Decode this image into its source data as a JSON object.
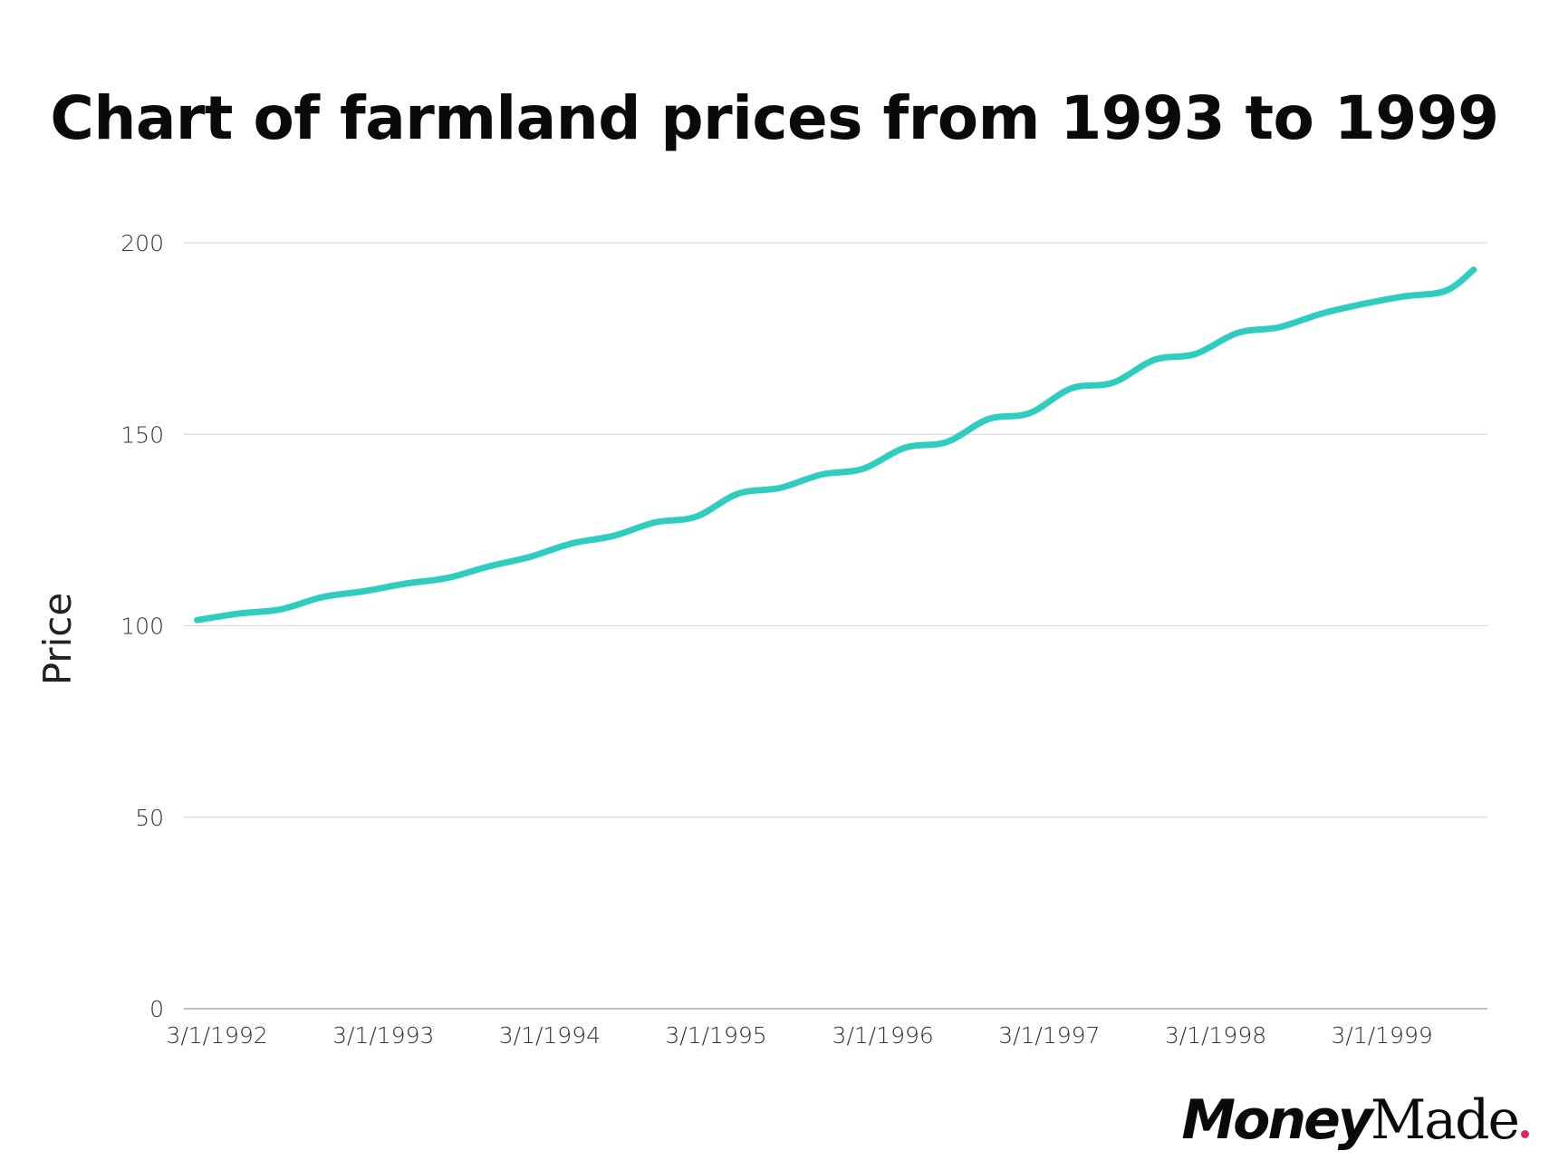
{
  "title": "Chart of farmland prices from 1993 to 1999",
  "brand": {
    "part1": "Money",
    "part2": "Made",
    "dot_color": "#e0245e"
  },
  "colors": {
    "line": "#2ecdc0",
    "grid": "#d9d9d9",
    "axis": "#aaaaaa"
  },
  "chart_data": {
    "type": "line",
    "title": "Chart of farmland prices from 1993 to 1999",
    "xlabel": "",
    "ylabel": "Price",
    "ylim": [
      0,
      200
    ],
    "yticks": [
      0,
      50,
      100,
      150,
      200
    ],
    "ytick_labels": [
      "0",
      "50",
      "100",
      "150",
      "200"
    ],
    "xticks": [
      "1992-03-01",
      "1993-03-01",
      "1994-03-01",
      "1995-03-01",
      "1996-03-01",
      "1997-03-01",
      "1998-03-01",
      "1999-03-01"
    ],
    "xtick_labels": [
      "3/1/1992",
      "3/1/1993",
      "3/1/1994",
      "3/1/1995",
      "3/1/1996",
      "3/1/1997",
      "3/1/1998",
      "3/1/1999"
    ],
    "x_range": [
      "1992-02-01",
      "1999-12-01"
    ],
    "grid": "horizontal",
    "legend": "none",
    "series": [
      {
        "x": [
          "1992-03-01",
          "1992-06-01",
          "1992-09-01",
          "1992-12-01",
          "1993-03-01",
          "1993-06-01",
          "1993-09-01",
          "1993-12-01",
          "1994-03-01",
          "1994-06-01",
          "1994-09-01",
          "1994-12-01",
          "1995-03-01",
          "1995-06-01",
          "1995-09-01",
          "1995-12-01",
          "1996-03-01",
          "1996-06-01",
          "1996-09-01",
          "1996-12-01",
          "1997-03-01",
          "1997-06-01",
          "1997-09-01",
          "1997-12-01",
          "1998-03-01",
          "1998-06-01",
          "1998-09-01",
          "1998-12-01",
          "1999-03-01",
          "1999-06-01",
          "1999-09-01",
          "1999-11-01"
        ],
        "y": [
          101.5,
          103.2,
          104.3,
          107.5,
          109.0,
          111.0,
          112.5,
          115.5,
          118.0,
          121.5,
          123.5,
          127.0,
          128.5,
          134.5,
          136.0,
          139.5,
          141.0,
          146.5,
          148.0,
          154.0,
          155.5,
          162.0,
          163.5,
          169.5,
          171.0,
          176.5,
          178.0,
          181.5,
          184.0,
          186.0,
          187.5,
          193.0
        ]
      }
    ]
  }
}
